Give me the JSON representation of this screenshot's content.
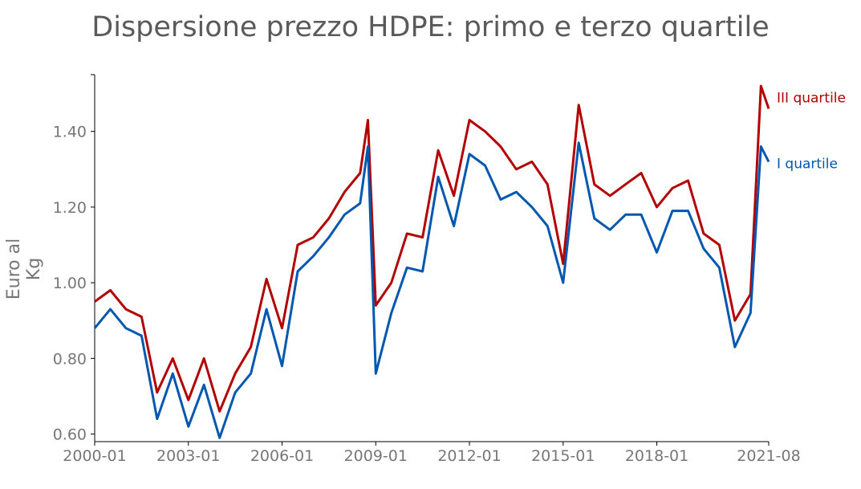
{
  "chart_data": {
    "type": "line",
    "title": "Dispersione prezzo HDPE: primo e terzo quartile",
    "ylabel": "Euro al Kg",
    "xlabel": "",
    "x_ticks": [
      "2000-01",
      "2003-01",
      "2006-01",
      "2009-01",
      "2012-01",
      "2015-01",
      "2018-01",
      "2021-08"
    ],
    "y_ticks": [
      "0.60",
      "0.80",
      "1.00",
      "1.20",
      "1.40"
    ],
    "ylim": [
      0.58,
      1.55
    ],
    "grid": false,
    "x": [
      "2000-01",
      "2000-07",
      "2001-01",
      "2001-07",
      "2002-01",
      "2002-07",
      "2003-01",
      "2003-07",
      "2004-01",
      "2004-07",
      "2005-01",
      "2005-07",
      "2006-01",
      "2006-07",
      "2007-01",
      "2007-07",
      "2008-01",
      "2008-07",
      "2008-10",
      "2009-01",
      "2009-07",
      "2010-01",
      "2010-07",
      "2011-01",
      "2011-07",
      "2012-01",
      "2012-07",
      "2013-01",
      "2013-07",
      "2014-01",
      "2014-07",
      "2015-01",
      "2015-07",
      "2016-01",
      "2016-07",
      "2017-01",
      "2017-07",
      "2018-01",
      "2018-07",
      "2019-01",
      "2019-07",
      "2020-01",
      "2020-07",
      "2021-01",
      "2021-05",
      "2021-08"
    ],
    "series": [
      {
        "name": "III quartile",
        "color": "#b30000",
        "values": [
          0.95,
          0.98,
          0.93,
          0.91,
          0.71,
          0.8,
          0.69,
          0.8,
          0.66,
          0.76,
          0.83,
          1.01,
          0.88,
          1.1,
          1.12,
          1.17,
          1.24,
          1.29,
          1.43,
          0.94,
          1.0,
          1.13,
          1.12,
          1.35,
          1.23,
          1.43,
          1.4,
          1.36,
          1.3,
          1.32,
          1.26,
          1.05,
          1.47,
          1.26,
          1.23,
          1.26,
          1.29,
          1.2,
          1.25,
          1.27,
          1.13,
          1.1,
          0.9,
          0.97,
          1.52,
          1.46
        ]
      },
      {
        "name": "I quartile",
        "color": "#0057b0",
        "values": [
          0.88,
          0.93,
          0.88,
          0.86,
          0.64,
          0.76,
          0.62,
          0.73,
          0.59,
          0.71,
          0.76,
          0.93,
          0.78,
          1.03,
          1.07,
          1.12,
          1.18,
          1.21,
          1.36,
          0.76,
          0.92,
          1.04,
          1.03,
          1.28,
          1.15,
          1.34,
          1.31,
          1.22,
          1.24,
          1.2,
          1.15,
          1.0,
          1.37,
          1.17,
          1.14,
          1.18,
          1.18,
          1.08,
          1.19,
          1.19,
          1.09,
          1.04,
          0.83,
          0.92,
          1.36,
          1.32
        ]
      }
    ],
    "label_positions": "right"
  }
}
